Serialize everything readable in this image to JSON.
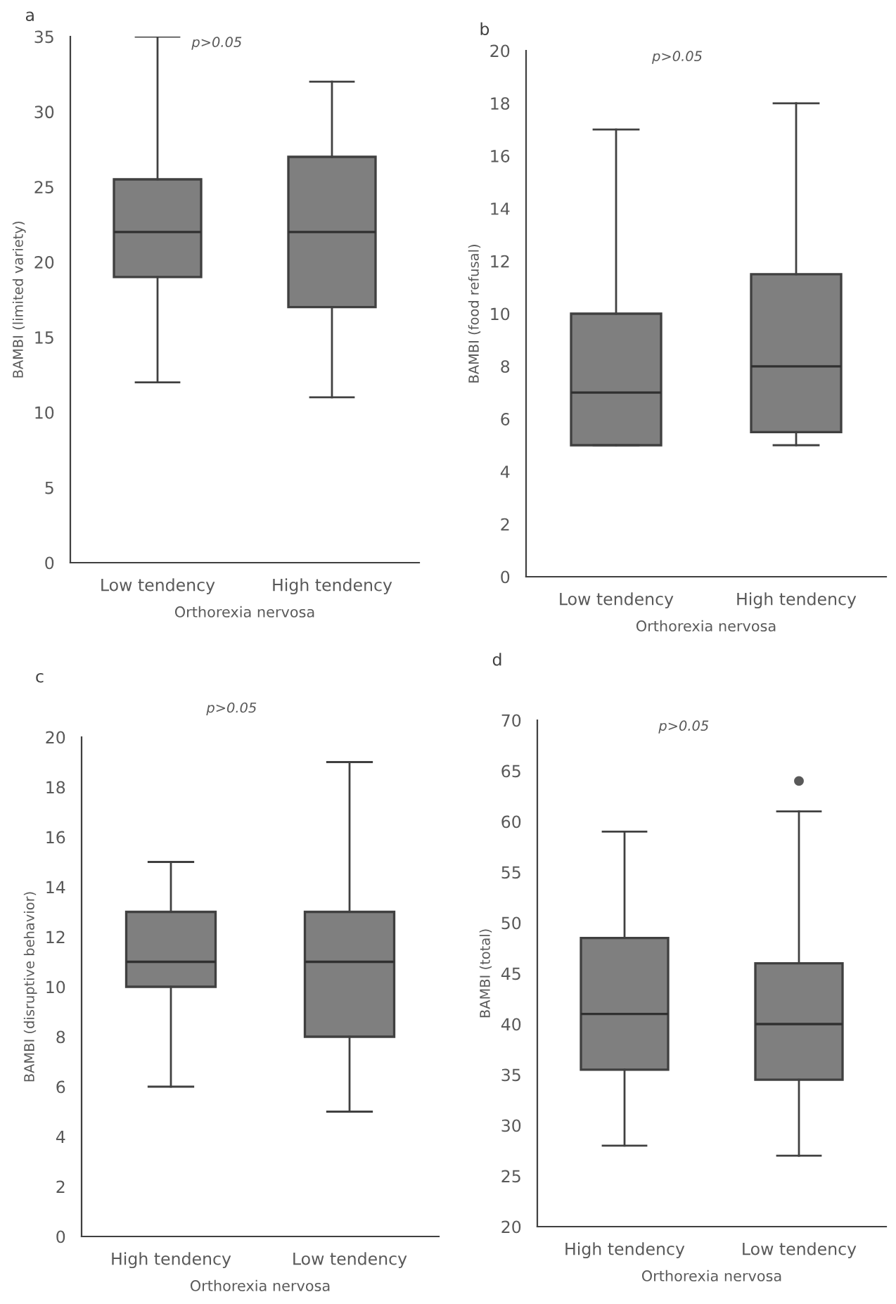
{
  "chart_data": [
    {
      "type": "box",
      "title": "a",
      "xlabel": "Orthorexia nervosa",
      "ylabel": "BAMBI (limited variety)",
      "annotations": [
        "p>0.05"
      ],
      "categories": [
        "Low tendency",
        "High tendency"
      ],
      "color": "#7f7f7f",
      "ylim": [
        0,
        35
      ],
      "yticks": [
        0,
        5,
        10,
        15,
        20,
        25,
        30,
        35
      ],
      "grid": false,
      "legend": false,
      "boxes": [
        {
          "low": 12,
          "q1": 19,
          "median": 22,
          "q3": 25.5,
          "high": 35
        },
        {
          "low": 11,
          "q1": 17,
          "median": 22,
          "q3": 27,
          "high": 32
        }
      ]
    },
    {
      "type": "box",
      "title": "b",
      "xlabel": "Orthorexia nervosa",
      "ylabel": "BAMBI (food refusal)",
      "annotations": [
        "p>0.05"
      ],
      "categories": [
        "Low tendency",
        "High tendency"
      ],
      "color": "#7f7f7f",
      "ylim": [
        0,
        20
      ],
      "yticks": [
        0,
        2,
        4,
        6,
        8,
        10,
        12,
        14,
        16,
        18,
        20
      ],
      "grid": false,
      "legend": false,
      "boxes": [
        {
          "low": 5,
          "q1": 5,
          "median": 7,
          "q3": 10,
          "high": 17
        },
        {
          "low": 5,
          "q1": 5.5,
          "median": 8,
          "q3": 11.5,
          "high": 18
        }
      ]
    },
    {
      "type": "box",
      "title": "c",
      "xlabel": "Orthorexia nervosa",
      "ylabel": "BAMBI (disruptive behavior)",
      "annotations": [
        "p>0.05"
      ],
      "categories": [
        "High tendency",
        "Low tendency"
      ],
      "color": "#7f7f7f",
      "ylim": [
        0,
        20
      ],
      "yticks": [
        0,
        2,
        4,
        6,
        8,
        10,
        12,
        14,
        16,
        18,
        20
      ],
      "grid": false,
      "legend": false,
      "boxes": [
        {
          "low": 6,
          "q1": 10,
          "median": 11,
          "q3": 13,
          "high": 15
        },
        {
          "low": 5,
          "q1": 8,
          "median": 11,
          "q3": 13,
          "high": 19
        }
      ]
    },
    {
      "type": "box",
      "title": "d",
      "xlabel": "Orthorexia nervosa",
      "ylabel": "BAMBI (total)",
      "annotations": [
        "p>0.05"
      ],
      "categories": [
        "High tendency",
        "Low tendency"
      ],
      "color": "#7f7f7f",
      "ylim": [
        20,
        70
      ],
      "yticks": [
        20,
        25,
        30,
        35,
        40,
        45,
        50,
        55,
        60,
        65,
        70
      ],
      "grid": false,
      "legend": false,
      "boxes": [
        {
          "low": 28,
          "q1": 35.5,
          "median": 41,
          "q3": 48.5,
          "high": 59
        },
        {
          "low": 27,
          "q1": 34.5,
          "median": 40,
          "q3": 46,
          "high": 61,
          "outliers": [
            64
          ]
        }
      ]
    }
  ]
}
